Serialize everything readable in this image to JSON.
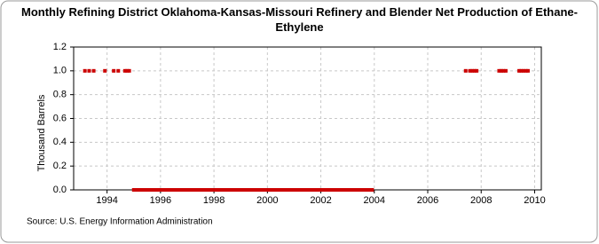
{
  "chart_data": {
    "type": "scatter",
    "title": "Monthly Refining District Oklahoma-Kansas-Missouri Refinery and Blender Net Production of Ethane-Ethylene",
    "y_label": "Thousand Barrels",
    "source": "Source: U.S. Energy Information Administration",
    "color": "#cc0000",
    "grid": true,
    "xlim": [
      1992.75,
      2010.25
    ],
    "xticks": [
      1994,
      1996,
      1998,
      2000,
      2002,
      2004,
      2006,
      2008,
      2010
    ],
    "ylim": [
      0,
      1.2
    ],
    "yticks": [
      {
        "value": 0,
        "label": "0.0"
      },
      0.2,
      0.4,
      0.6,
      0.8,
      {
        "value": 1,
        "label": "1.0"
      },
      1.2
    ],
    "x": [
      1993.17,
      1993.33,
      1993.5,
      1993.92,
      1994.25,
      1994.42,
      1994.67,
      1994.75,
      1994.83,
      1995.0,
      1995.08,
      1995.17,
      1995.25,
      1995.33,
      1995.42,
      1995.5,
      1995.58,
      1995.67,
      1995.75,
      1995.83,
      1995.92,
      1996.0,
      1996.08,
      1996.17,
      1996.25,
      1996.33,
      1996.42,
      1996.5,
      1996.58,
      1996.67,
      1996.75,
      1996.83,
      1996.92,
      1997.0,
      1997.08,
      1997.17,
      1997.25,
      1997.33,
      1997.42,
      1997.5,
      1997.58,
      1997.67,
      1997.75,
      1997.83,
      1997.92,
      1998.0,
      1998.08,
      1998.17,
      1998.25,
      1998.33,
      1998.42,
      1998.5,
      1998.58,
      1998.67,
      1998.75,
      1998.83,
      1998.92,
      1999.0,
      1999.08,
      1999.17,
      1999.25,
      1999.33,
      1999.42,
      1999.5,
      1999.58,
      1999.67,
      1999.75,
      1999.83,
      1999.92,
      2000.0,
      2000.08,
      2000.17,
      2000.25,
      2000.33,
      2000.42,
      2000.5,
      2000.58,
      2000.67,
      2000.75,
      2000.83,
      2000.92,
      2001.0,
      2001.08,
      2001.17,
      2001.25,
      2001.33,
      2001.42,
      2001.5,
      2001.58,
      2001.67,
      2001.75,
      2001.83,
      2001.92,
      2002.0,
      2002.08,
      2002.17,
      2002.25,
      2002.33,
      2002.42,
      2002.5,
      2002.58,
      2002.67,
      2002.75,
      2002.83,
      2002.92,
      2003.0,
      2003.08,
      2003.17,
      2003.25,
      2003.33,
      2003.42,
      2003.5,
      2003.58,
      2003.67,
      2003.75,
      2003.83,
      2003.92,
      2007.42,
      2007.58,
      2007.67,
      2007.75,
      2007.83,
      2008.67,
      2008.75,
      2008.83,
      2008.92,
      2009.42,
      2009.5,
      2009.58,
      2009.67,
      2009.75
    ],
    "values": [
      1,
      1,
      1,
      1,
      1,
      1,
      1,
      1,
      1,
      0,
      0,
      0,
      0,
      0,
      0,
      0,
      0,
      0,
      0,
      0,
      0,
      0,
      0,
      0,
      0,
      0,
      0,
      0,
      0,
      0,
      0,
      0,
      0,
      0,
      0,
      0,
      0,
      0,
      0,
      0,
      0,
      0,
      0,
      0,
      0,
      0,
      0,
      0,
      0,
      0,
      0,
      0,
      0,
      0,
      0,
      0,
      0,
      0,
      0,
      0,
      0,
      0,
      0,
      0,
      0,
      0,
      0,
      0,
      0,
      0,
      0,
      0,
      0,
      0,
      0,
      0,
      0,
      0,
      0,
      0,
      0,
      0,
      0,
      0,
      0,
      0,
      0,
      0,
      0,
      0,
      0,
      0,
      0,
      0,
      0,
      0,
      0,
      0,
      0,
      0,
      0,
      0,
      0,
      0,
      0,
      0,
      0,
      0,
      0,
      0,
      0,
      0,
      0,
      0,
      0,
      0,
      0,
      1,
      1,
      1,
      1,
      1,
      1,
      1,
      1,
      1,
      1,
      1,
      1,
      1,
      1
    ]
  }
}
